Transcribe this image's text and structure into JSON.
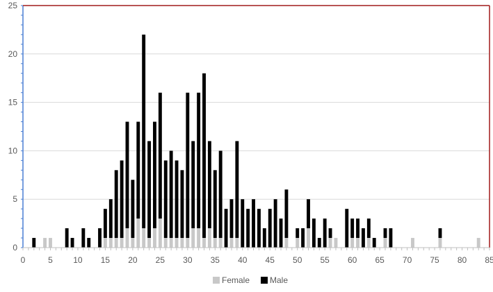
{
  "chart_data": {
    "type": "bar",
    "stacked": true,
    "x": [
      1,
      2,
      3,
      4,
      5,
      6,
      7,
      8,
      9,
      10,
      11,
      12,
      13,
      14,
      15,
      16,
      17,
      18,
      19,
      20,
      21,
      22,
      23,
      24,
      25,
      26,
      27,
      28,
      29,
      30,
      31,
      32,
      33,
      34,
      35,
      36,
      37,
      38,
      39,
      40,
      41,
      42,
      43,
      44,
      45,
      46,
      47,
      48,
      49,
      50,
      51,
      52,
      53,
      54,
      55,
      56,
      57,
      58,
      59,
      60,
      61,
      62,
      63,
      64,
      65,
      66,
      67,
      68,
      69,
      70,
      71,
      72,
      73,
      74,
      75,
      76,
      77,
      78,
      79,
      80,
      81,
      82,
      83,
      84
    ],
    "series": [
      {
        "name": "Female",
        "color": "#c8c8c8",
        "values": [
          0,
          0,
          0,
          1,
          1,
          0,
          0,
          0,
          0,
          0,
          0,
          0,
          0,
          0,
          1,
          1,
          1,
          1,
          2,
          1,
          3,
          2,
          1,
          2,
          3,
          1,
          1,
          1,
          1,
          1,
          2,
          2,
          1,
          2,
          1,
          1,
          0,
          1,
          1,
          0,
          0,
          0,
          0,
          0,
          0,
          0,
          0,
          1,
          0,
          1,
          0,
          2,
          0,
          0,
          0,
          1,
          1,
          0,
          0,
          1,
          1,
          0,
          1,
          0,
          0,
          1,
          0,
          0,
          0,
          0,
          1,
          0,
          0,
          0,
          0,
          1,
          0,
          0,
          0,
          0,
          0,
          0,
          1,
          0
        ]
      },
      {
        "name": "Male",
        "color": "#000000",
        "values": [
          0,
          1,
          0,
          0,
          0,
          0,
          0,
          2,
          1,
          0,
          2,
          1,
          0,
          2,
          3,
          4,
          7,
          8,
          11,
          6,
          10,
          20,
          10,
          11,
          13,
          8,
          9,
          8,
          7,
          15,
          9,
          14,
          17,
          9,
          7,
          9,
          4,
          4,
          10,
          5,
          4,
          5,
          4,
          2,
          4,
          5,
          3,
          5,
          0,
          1,
          2,
          3,
          3,
          1,
          3,
          1,
          0,
          0,
          4,
          2,
          2,
          2,
          2,
          1,
          0,
          1,
          2,
          0,
          0,
          0,
          0,
          0,
          0,
          0,
          0,
          1,
          0,
          0,
          0,
          0,
          0,
          0,
          0,
          0
        ]
      }
    ],
    "xlim": [
      0,
      85
    ],
    "ylim": [
      0,
      25
    ],
    "x_ticks": [
      0,
      5,
      10,
      15,
      20,
      25,
      30,
      35,
      40,
      45,
      50,
      55,
      60,
      65,
      70,
      75,
      80,
      85
    ],
    "y_ticks": [
      0,
      5,
      10,
      15,
      20,
      25
    ],
    "grid": true,
    "legend_position": "bottom",
    "legend": [
      {
        "label": "Female",
        "color": "#c8c8c8"
      },
      {
        "label": "Male",
        "color": "#000000"
      }
    ]
  }
}
